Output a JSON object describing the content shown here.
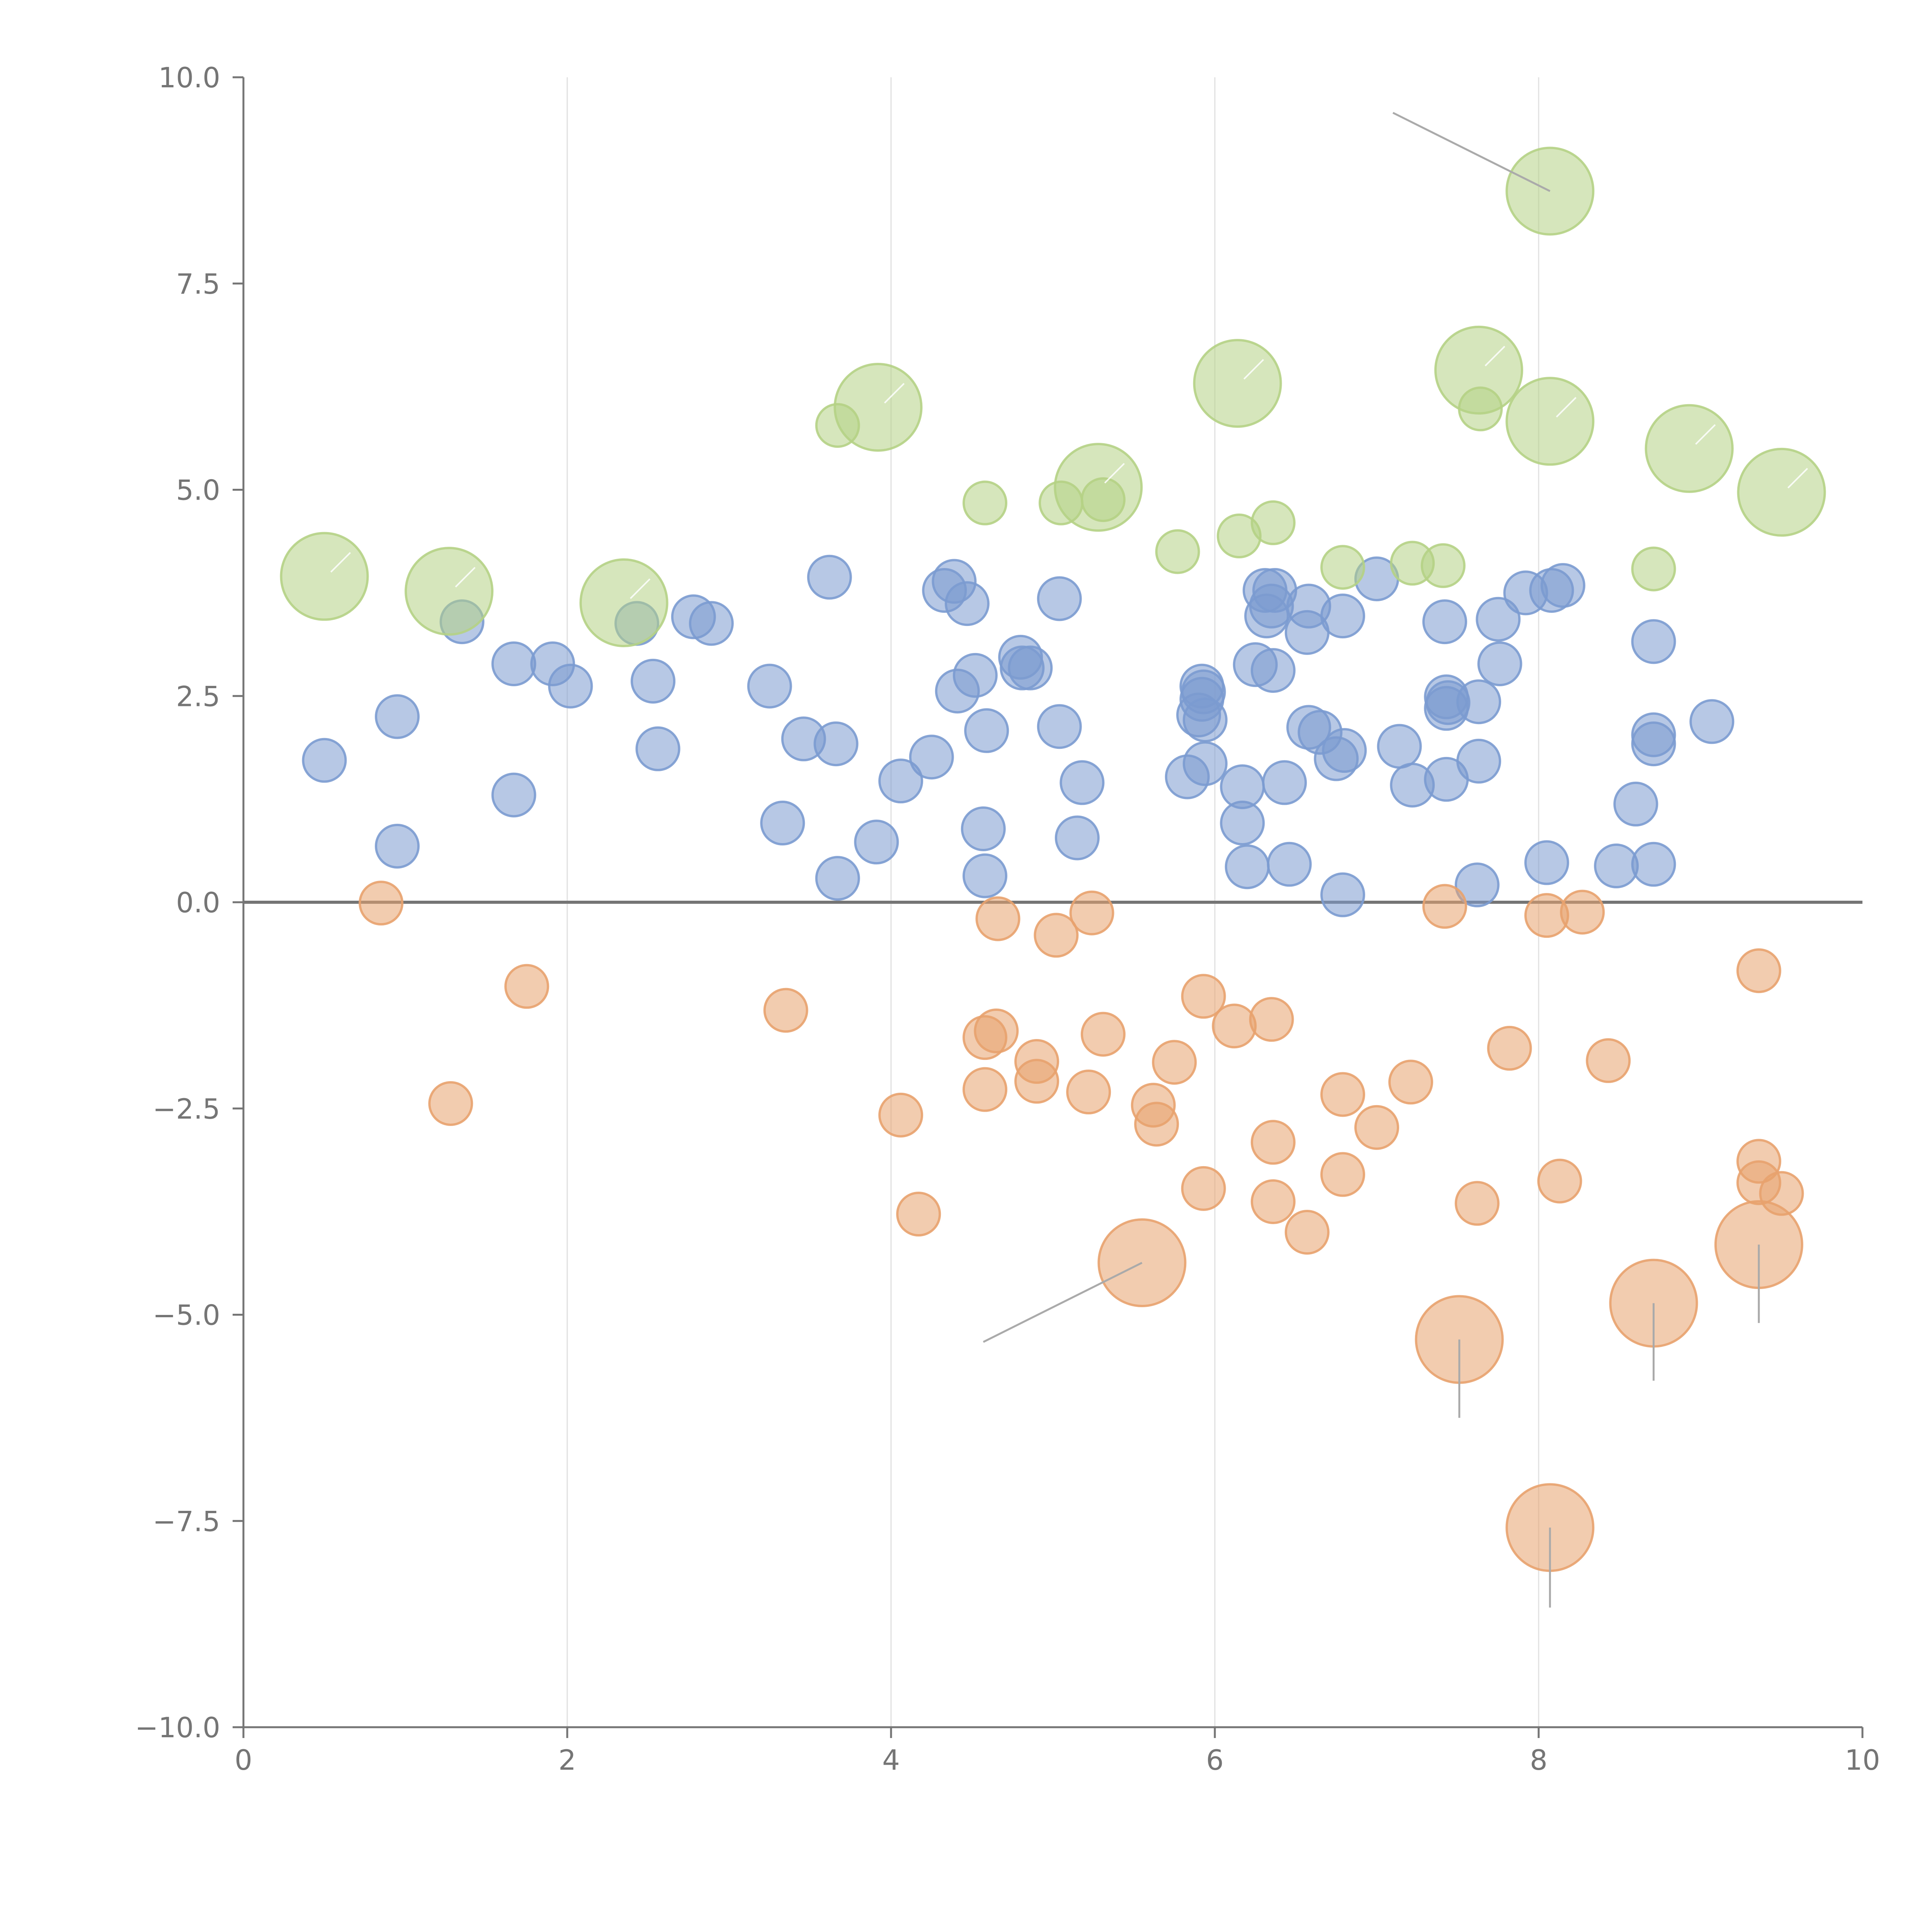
{
  "chart_data": {
    "type": "scatter",
    "title": "",
    "xlabel": "",
    "ylabel": "",
    "xlim": [
      0,
      10
    ],
    "ylim": [
      -10,
      10
    ],
    "grid": "vertical",
    "zero_line": 0,
    "x_ticks": [
      {
        "value": 0,
        "label": "0"
      },
      {
        "value": 2,
        "label": "2"
      },
      {
        "value": 4,
        "label": "4"
      },
      {
        "value": 6,
        "label": "6"
      },
      {
        "value": 8,
        "label": "8"
      },
      {
        "value": 10,
        "label": "10"
      }
    ],
    "y_ticks": [
      {
        "value": 10,
        "label": "10.0"
      },
      {
        "value": 7.5,
        "label": "7.5"
      },
      {
        "value": 5,
        "label": "5.0"
      },
      {
        "value": 2.5,
        "label": "2.5"
      },
      {
        "value": 0,
        "label": "0.0"
      },
      {
        "value": -2.5,
        "label": "−2.5"
      },
      {
        "value": -5,
        "label": "−5.0"
      },
      {
        "value": -7.5,
        "label": "−7.5"
      },
      {
        "value": -10,
        "label": "−10.0"
      }
    ],
    "colors": {
      "blue": "#7b9bd0",
      "orange": "#e8a26e",
      "green": "#b5d185"
    },
    "size_units": {
      "small": 1,
      "large": 2
    },
    "series": [
      {
        "name": "blue",
        "color": "blue",
        "points": [
          [
            0.5,
            1.72
          ],
          [
            0.95,
            2.25
          ],
          [
            0.95,
            0.68
          ],
          [
            1.35,
            3.4
          ],
          [
            1.67,
            2.89
          ],
          [
            1.67,
            1.3
          ],
          [
            1.91,
            2.89
          ],
          [
            2.02,
            2.62
          ],
          [
            2.43,
            3.38
          ],
          [
            2.53,
            2.68
          ],
          [
            2.56,
            1.86
          ],
          [
            2.78,
            3.46
          ],
          [
            2.89,
            3.38
          ],
          [
            3.25,
            2.62
          ],
          [
            3.33,
            0.96
          ],
          [
            3.46,
            1.98
          ],
          [
            3.62,
            3.94
          ],
          [
            3.66,
            1.92
          ],
          [
            3.67,
            0.29
          ],
          [
            3.91,
            0.73
          ],
          [
            4.06,
            1.47
          ],
          [
            4.25,
            1.76
          ],
          [
            4.33,
            3.78
          ],
          [
            4.39,
            3.89
          ],
          [
            4.41,
            2.56
          ],
          [
            4.47,
            3.62
          ],
          [
            4.52,
            2.75
          ],
          [
            4.57,
            0.89
          ],
          [
            4.58,
            0.32
          ],
          [
            4.59,
            2.08
          ],
          [
            4.8,
            2.97
          ],
          [
            4.81,
            2.84
          ],
          [
            4.86,
            2.84
          ],
          [
            5.04,
            3.68
          ],
          [
            5.04,
            2.13
          ],
          [
            5.15,
            0.78
          ],
          [
            5.18,
            1.45
          ],
          [
            5.83,
            1.52
          ],
          [
            5.9,
            2.27
          ],
          [
            5.92,
            2.62
          ],
          [
            5.92,
            2.46
          ],
          [
            5.93,
            2.55
          ],
          [
            5.94,
            2.21
          ],
          [
            5.94,
            1.68
          ],
          [
            6.17,
            0.96
          ],
          [
            6.17,
            1.4
          ],
          [
            6.2,
            0.43
          ],
          [
            6.25,
            2.88
          ],
          [
            6.31,
            3.78
          ],
          [
            6.32,
            3.47
          ],
          [
            6.35,
            3.59
          ],
          [
            6.36,
            2.81
          ],
          [
            6.37,
            3.78
          ],
          [
            6.43,
            1.45
          ],
          [
            6.46,
            0.46
          ],
          [
            6.57,
            3.27
          ],
          [
            6.58,
            2.12
          ],
          [
            6.58,
            3.59
          ],
          [
            6.65,
            2.06
          ],
          [
            6.75,
            1.74
          ],
          [
            6.79,
            0.09
          ],
          [
            6.79,
            3.47
          ],
          [
            6.8,
            1.84
          ],
          [
            7.0,
            3.92
          ],
          [
            7.14,
            1.89
          ],
          [
            7.22,
            1.42
          ],
          [
            7.42,
            3.4
          ],
          [
            7.43,
            2.49
          ],
          [
            7.43,
            2.35
          ],
          [
            7.43,
            1.49
          ],
          [
            7.44,
            2.42
          ],
          [
            7.62,
            0.21
          ],
          [
            7.63,
            2.43
          ],
          [
            7.63,
            1.71
          ],
          [
            7.75,
            3.43
          ],
          [
            7.76,
            2.89
          ],
          [
            7.92,
            3.75
          ],
          [
            8.05,
            0.48
          ],
          [
            8.08,
            3.78
          ],
          [
            8.15,
            3.84
          ],
          [
            8.48,
            0.44
          ],
          [
            8.6,
            1.19
          ],
          [
            8.71,
            0.46
          ],
          [
            8.71,
            1.92
          ],
          [
            8.71,
            2.03
          ],
          [
            8.71,
            3.16
          ],
          [
            9.07,
            2.19
          ]
        ]
      },
      {
        "name": "orange",
        "color": "orange",
        "points": [
          [
            0.85,
            -0.01
          ],
          [
            1.28,
            -2.44
          ],
          [
            1.75,
            -1.02
          ],
          [
            3.35,
            -1.31
          ],
          [
            4.06,
            -2.58
          ],
          [
            4.17,
            -3.78
          ],
          [
            4.58,
            -1.64
          ],
          [
            4.58,
            -2.27
          ],
          [
            4.65,
            -1.56
          ],
          [
            4.66,
            -0.2
          ],
          [
            4.9,
            -1.93
          ],
          [
            4.9,
            -2.17
          ],
          [
            5.02,
            -0.4
          ],
          [
            5.22,
            -2.3
          ],
          [
            5.24,
            -0.13
          ],
          [
            5.31,
            -1.6
          ],
          [
            5.62,
            -2.46
          ],
          [
            5.64,
            -2.69
          ],
          [
            5.75,
            -1.94
          ],
          [
            5.93,
            -1.14
          ],
          [
            5.93,
            -3.47
          ],
          [
            6.12,
            -1.5
          ],
          [
            6.35,
            -1.42
          ],
          [
            6.36,
            -2.91
          ],
          [
            6.36,
            -3.63
          ],
          [
            6.57,
            -4.0
          ],
          [
            6.79,
            -2.33
          ],
          [
            6.79,
            -3.3
          ],
          [
            7.0,
            -2.73
          ],
          [
            7.21,
            -2.18
          ],
          [
            7.42,
            -0.05
          ],
          [
            7.62,
            -3.65
          ],
          [
            7.82,
            -1.77
          ],
          [
            8.05,
            -0.16
          ],
          [
            8.13,
            -3.38
          ],
          [
            8.27,
            -0.12
          ],
          [
            8.43,
            -1.92
          ],
          [
            9.36,
            -0.83
          ],
          [
            9.36,
            -3.14
          ],
          [
            9.36,
            -3.4
          ],
          [
            9.5,
            -3.53
          ],
          {
            "x": 5.55,
            "y": -4.37,
            "size": "large",
            "leader_to": [
              4.57,
              -5.33
            ]
          },
          {
            "x": 7.51,
            "y": -5.3,
            "size": "large",
            "leader_to": [
              7.51,
              -6.25
            ]
          },
          {
            "x": 8.71,
            "y": -4.86,
            "size": "large",
            "leader_to": [
              8.71,
              -5.8
            ]
          },
          {
            "x": 9.36,
            "y": -4.15,
            "size": "large",
            "leader_to": [
              9.36,
              -5.1
            ]
          },
          {
            "x": 8.07,
            "y": -7.58,
            "size": "large",
            "leader_to": [
              8.07,
              -8.55
            ]
          }
        ]
      },
      {
        "name": "green",
        "color": "green",
        "points": [
          [
            3.67,
            5.78
          ],
          [
            4.58,
            4.84
          ],
          [
            5.05,
            4.84
          ],
          [
            5.31,
            4.88
          ],
          [
            5.77,
            4.25
          ],
          [
            6.15,
            4.44
          ],
          [
            6.36,
            4.6
          ],
          [
            6.79,
            4.06
          ],
          [
            7.22,
            4.11
          ],
          [
            7.41,
            4.08
          ],
          [
            7.64,
            5.98
          ],
          [
            8.71,
            4.04
          ],
          {
            "x": 0.5,
            "y": 3.95,
            "size": "large"
          },
          {
            "x": 1.27,
            "y": 3.77,
            "size": "large"
          },
          {
            "x": 2.35,
            "y": 3.63,
            "size": "large"
          },
          {
            "x": 3.92,
            "y": 6.0,
            "size": "large"
          },
          {
            "x": 5.28,
            "y": 5.03,
            "size": "large"
          },
          {
            "x": 6.14,
            "y": 6.29,
            "size": "large"
          },
          {
            "x": 7.63,
            "y": 6.45,
            "size": "large"
          },
          {
            "x": 8.07,
            "y": 5.83,
            "size": "large"
          },
          {
            "x": 8.93,
            "y": 5.5,
            "size": "large"
          },
          {
            "x": 9.5,
            "y": 4.97,
            "size": "large"
          },
          {
            "x": 8.07,
            "y": 8.62,
            "size": "large",
            "leader_to": [
              7.1,
              9.57
            ]
          }
        ]
      }
    ]
  }
}
